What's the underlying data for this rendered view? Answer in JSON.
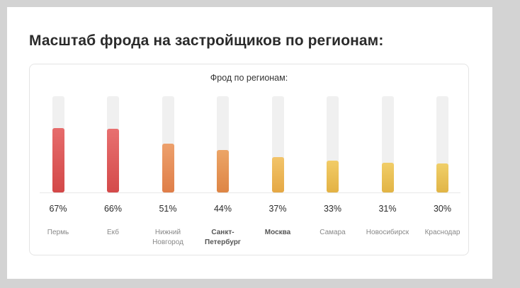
{
  "page": {
    "title": "Масштаб фрода на застройщиков по регионам:"
  },
  "chart_data": {
    "type": "bar",
    "title": "Фрод по регионам:",
    "categories": [
      "Пермь",
      "Екб",
      "Нижний Новгород",
      "Санкт-Петербург",
      "Москва",
      "Самара",
      "Новосибирск",
      "Краснодар"
    ],
    "category_lines": [
      [
        "Пермь"
      ],
      [
        "Екб"
      ],
      [
        "Нижний",
        "Новгород"
      ],
      [
        "Санкт-",
        "Петербург"
      ],
      [
        "Москва"
      ],
      [
        "Самара"
      ],
      [
        "Новосибирск"
      ],
      [
        "Краснодар"
      ]
    ],
    "category_bold": [
      false,
      false,
      false,
      true,
      true,
      false,
      false,
      false
    ],
    "values": [
      67,
      66,
      51,
      44,
      37,
      33,
      31,
      30
    ],
    "value_labels": [
      "67%",
      "66%",
      "51%",
      "44%",
      "37%",
      "33%",
      "31%",
      "30%"
    ],
    "unit": "%",
    "ylim": [
      0,
      100
    ],
    "colors": [
      [
        "#e66c6c",
        "#d34848"
      ],
      [
        "#e87070",
        "#d44a4a"
      ],
      [
        "#eda06c",
        "#df7e49"
      ],
      [
        "#eca567",
        "#de8545"
      ],
      [
        "#f2c46a",
        "#e5a844"
      ],
      [
        "#f2cc67",
        "#e3b244"
      ],
      [
        "#f1cd68",
        "#e2b445"
      ],
      [
        "#f0cf69",
        "#e1b546"
      ]
    ]
  }
}
